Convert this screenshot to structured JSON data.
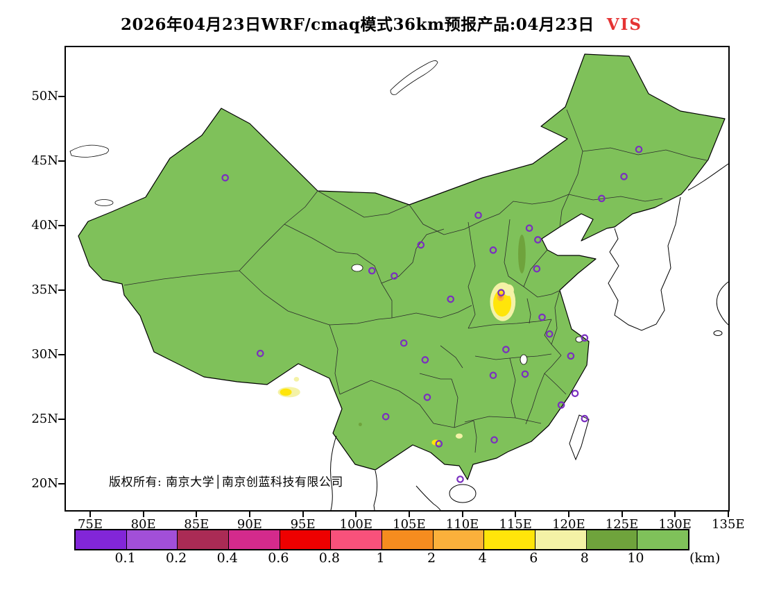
{
  "title": {
    "text": "2026年04月23日WRF/cmaq模式36km预报产品:04月23日",
    "variable": "VIS",
    "variable_color": "#E53333"
  },
  "map": {
    "copyright": "版权所有: 南京大学│南京创蓝科技有限公司"
  },
  "axes": {
    "y": [
      {
        "label": "50N",
        "lat": 50
      },
      {
        "label": "45N",
        "lat": 45
      },
      {
        "label": "40N",
        "lat": 40
      },
      {
        "label": "35N",
        "lat": 35
      },
      {
        "label": "30N",
        "lat": 30
      },
      {
        "label": "25N",
        "lat": 25
      },
      {
        "label": "20N",
        "lat": 20
      }
    ],
    "x": [
      {
        "label": "75E",
        "lon": 75
      },
      {
        "label": "80E",
        "lon": 80
      },
      {
        "label": "85E",
        "lon": 85
      },
      {
        "label": "90E",
        "lon": 90
      },
      {
        "label": "95E",
        "lon": 95
      },
      {
        "label": "100E",
        "lon": 100
      },
      {
        "label": "105E",
        "lon": 105
      },
      {
        "label": "110E",
        "lon": 110
      },
      {
        "label": "115E",
        "lon": 115
      },
      {
        "label": "120E",
        "lon": 120
      },
      {
        "label": "125E",
        "lon": 125
      },
      {
        "label": "130E",
        "lon": 130
      },
      {
        "label": "135E",
        "lon": 135
      }
    ]
  },
  "colorbar": {
    "unit": "(km)",
    "segment_colors": [
      "#8226D8",
      "#A24FD8",
      "#AA2B55",
      "#D42A8C",
      "#EE0000",
      "#F8517B",
      "#F68C1F",
      "#FBB03B",
      "#FFE50A",
      "#F4F2A6",
      "#6FA33C",
      "#7FC15A"
    ],
    "boundary_labels": [
      "0.1",
      "0.2",
      "0.4",
      "0.6",
      "0.8",
      "1",
      "2",
      "4",
      "6",
      "8",
      "10"
    ]
  },
  "colors": {
    "land": "#7FC15A",
    "marker": "#7A2FBF"
  },
  "chart_data": {
    "type": "heatmap",
    "title": "2026年04月23日WRF/cmaq模式36km预报产品:04月23日 VIS",
    "variable": "VIS",
    "unit": "km",
    "model": "WRF/cmaq 36km",
    "forecast_issue_date": "2026年04月23日",
    "valid_date": "04月23日",
    "lon_range": [
      72.7,
      135
    ],
    "lat_range": [
      18,
      53.9
    ],
    "lon_ticks": [
      75,
      80,
      85,
      90,
      95,
      100,
      105,
      110,
      115,
      120,
      125,
      130,
      135
    ],
    "lat_ticks": [
      20,
      25,
      30,
      35,
      40,
      45,
      50
    ],
    "levels_km": [
      0.1,
      0.2,
      0.4,
      0.6,
      0.8,
      1,
      2,
      4,
      6,
      8,
      10
    ],
    "level_colors": [
      "#8226D8",
      "#A24FD8",
      "#AA2B55",
      "#D42A8C",
      "#EE0000",
      "#F8517B",
      "#F68C1F",
      "#FBB03B",
      "#FFE50A",
      "#F4F2A6",
      "#6FA33C",
      "#7FC15A"
    ],
    "background_value_km": ">10",
    "low_visibility_patches": [
      {
        "lon": 113.8,
        "lat": 34.1,
        "rx_deg": 1.2,
        "ry_deg": 1.5,
        "color": "#F4F2A6",
        "value_km": "6-8"
      },
      {
        "lon": 113.75,
        "lat": 34.0,
        "rx_deg": 0.85,
        "ry_deg": 1.05,
        "color": "#FFE50A",
        "value_km": "4-6"
      },
      {
        "lon": 114.35,
        "lat": 35.0,
        "rx_deg": 0.5,
        "ry_deg": 0.45,
        "color": "#F4F2A6",
        "value_km": "6-8"
      },
      {
        "lon": 113.6,
        "lat": 34.45,
        "rx_deg": 0.33,
        "ry_deg": 0.3,
        "color": "#FBB03B",
        "value_km": "2-4"
      },
      {
        "lon": 113.6,
        "lat": 34.5,
        "rx_deg": 0.15,
        "ry_deg": 0.13,
        "color": "#F68C1F",
        "value_km": "1-2"
      },
      {
        "lon": 115.6,
        "lat": 37.8,
        "rx_deg": 0.35,
        "ry_deg": 1.5,
        "color": "#6FA33C",
        "value_km": "8-10"
      },
      {
        "lon": 93.7,
        "lat": 27.1,
        "rx_deg": 1.05,
        "ry_deg": 0.4,
        "color": "#F4F2A6",
        "value_km": "6-8"
      },
      {
        "lon": 93.4,
        "lat": 27.1,
        "rx_deg": 0.55,
        "ry_deg": 0.28,
        "color": "#FFE50A",
        "value_km": "4-6"
      },
      {
        "lon": 94.4,
        "lat": 28.1,
        "rx_deg": 0.25,
        "ry_deg": 0.18,
        "color": "#F4F2A6",
        "value_km": "6-8"
      },
      {
        "lon": 107.5,
        "lat": 23.2,
        "rx_deg": 0.38,
        "ry_deg": 0.22,
        "color": "#FFE50A",
        "value_km": "4-6"
      },
      {
        "lon": 109.7,
        "lat": 23.7,
        "rx_deg": 0.33,
        "ry_deg": 0.2,
        "color": "#F4F2A6",
        "value_km": "6-8"
      },
      {
        "lon": 100.4,
        "lat": 24.6,
        "rx_deg": 0.16,
        "ry_deg": 0.14,
        "color": "#6FA33C",
        "value_km": "8-10"
      }
    ],
    "city_markers": [
      [
        87.7,
        43.7
      ],
      [
        126.6,
        45.9
      ],
      [
        125.2,
        43.8
      ],
      [
        123.1,
        42.1
      ],
      [
        111.5,
        40.8
      ],
      [
        116.3,
        39.8
      ],
      [
        117.1,
        38.9
      ],
      [
        106.1,
        38.5
      ],
      [
        112.9,
        38.1
      ],
      [
        101.5,
        36.5
      ],
      [
        103.6,
        36.1
      ],
      [
        117.0,
        36.65
      ],
      [
        108.9,
        34.3
      ],
      [
        113.65,
        34.8
      ],
      [
        117.5,
        32.9
      ],
      [
        118.2,
        31.6
      ],
      [
        121.5,
        31.3
      ],
      [
        104.5,
        30.9
      ],
      [
        91.0,
        30.1
      ],
      [
        114.1,
        30.4
      ],
      [
        120.2,
        29.9
      ],
      [
        106.5,
        29.6
      ],
      [
        112.9,
        28.4
      ],
      [
        115.9,
        28.5
      ],
      [
        106.7,
        26.7
      ],
      [
        120.6,
        27.0
      ],
      [
        119.3,
        26.1
      ],
      [
        121.5,
        25.05
      ],
      [
        102.8,
        25.2
      ],
      [
        107.8,
        23.1
      ],
      [
        113.0,
        23.4
      ],
      [
        109.8,
        20.35
      ]
    ]
  }
}
